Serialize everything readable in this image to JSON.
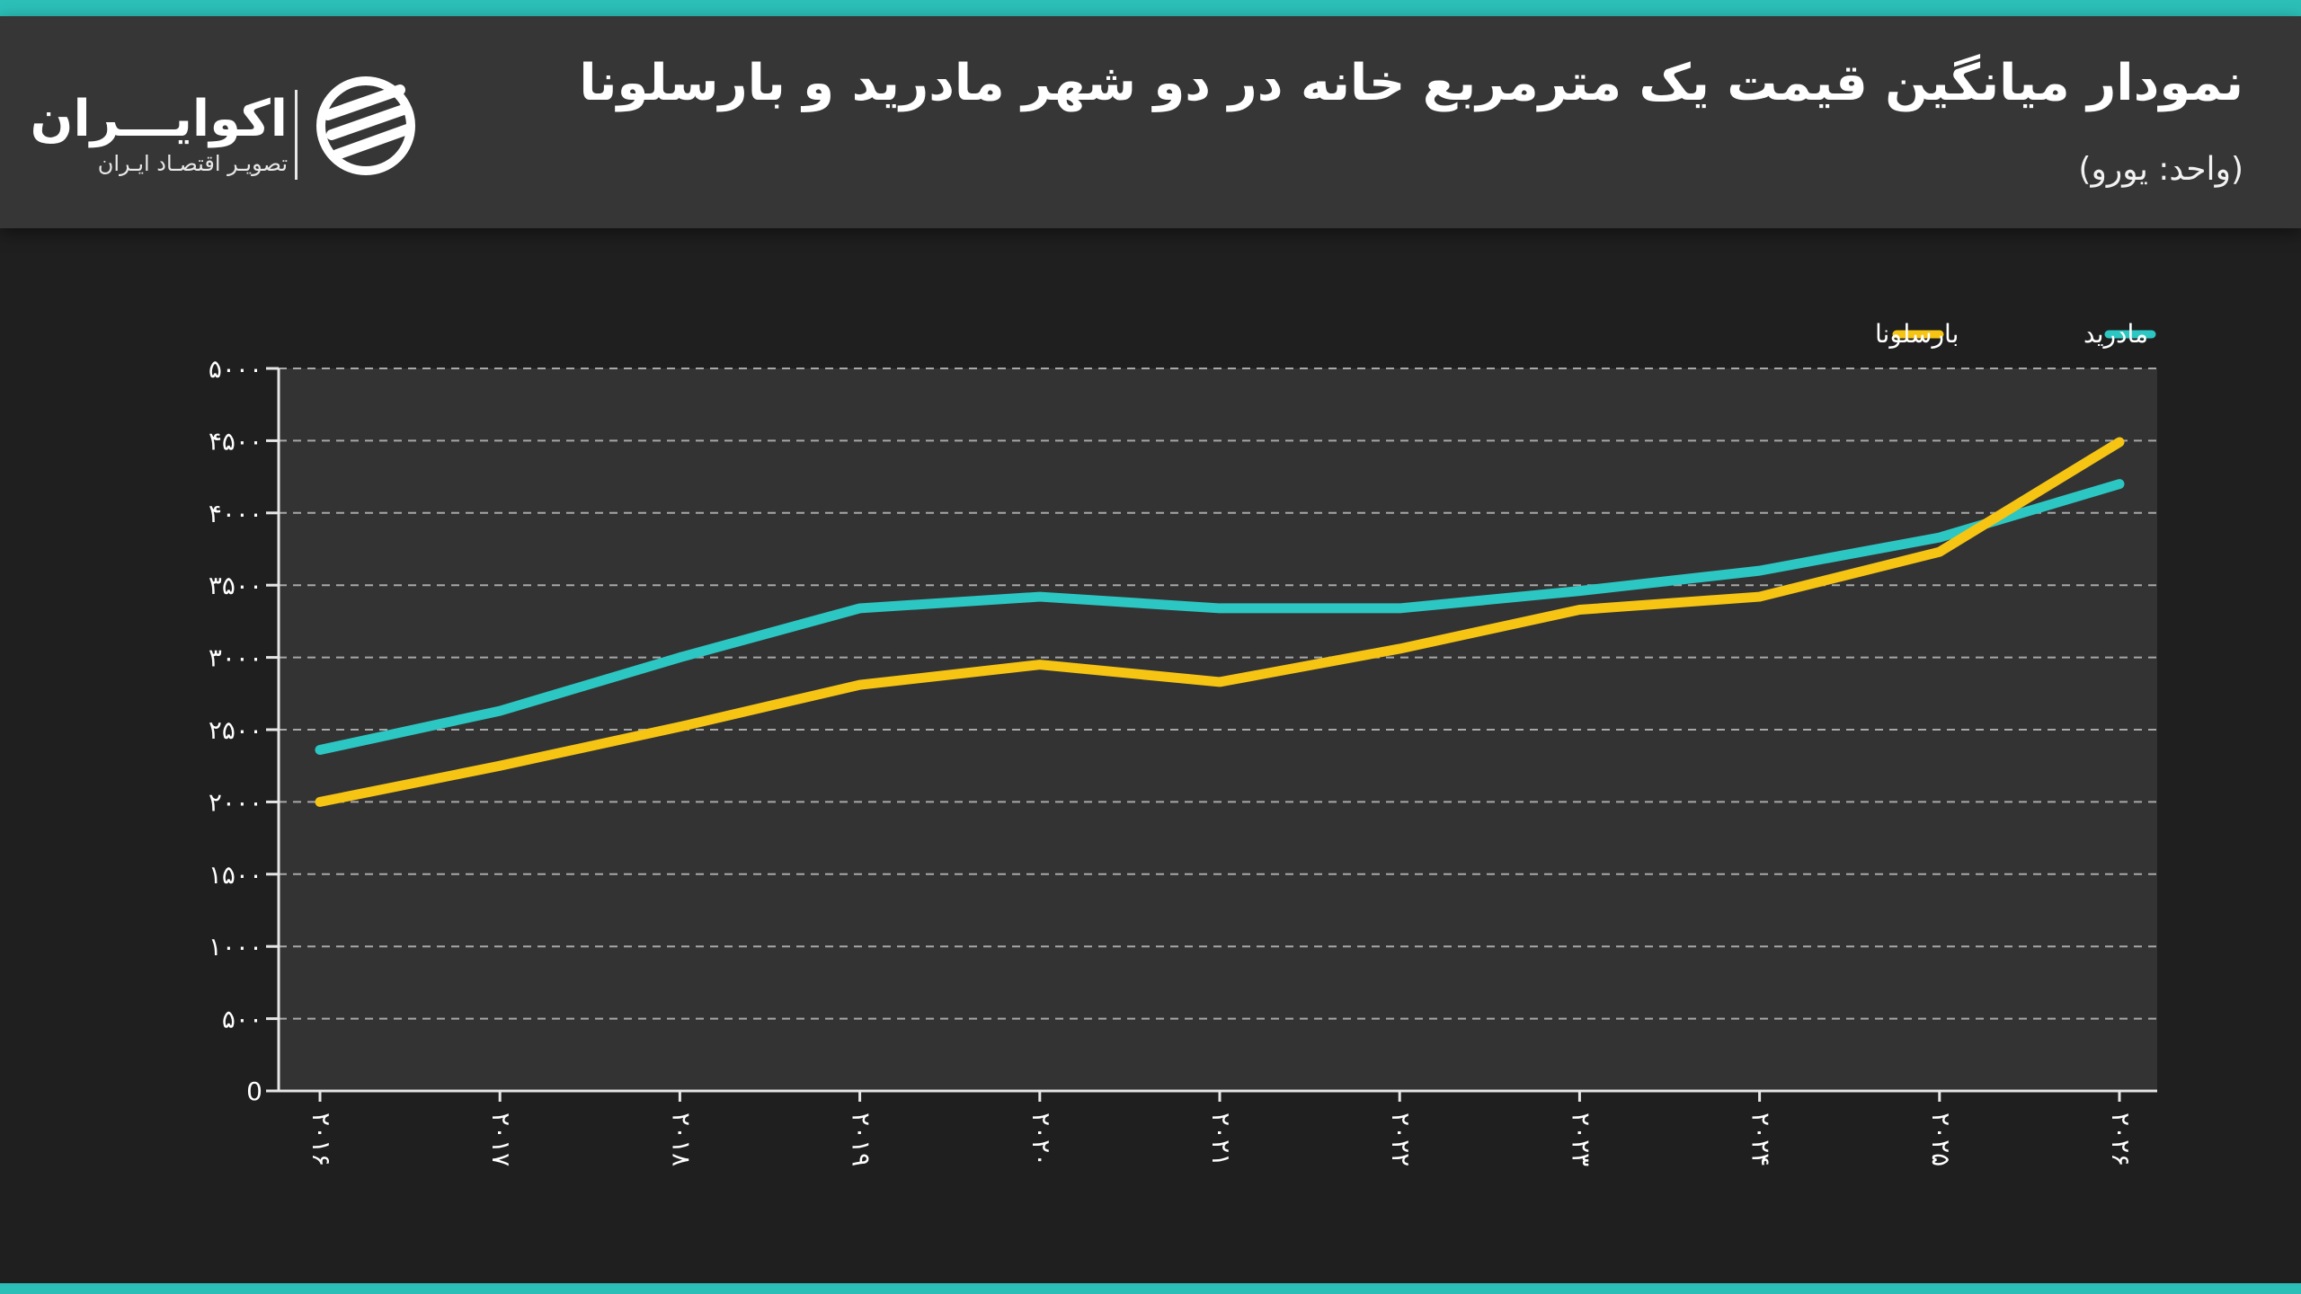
{
  "header": {
    "title": "نمودار میانگین قیمت یک مترمربع خانه در دو شهر مادرید و بارسلونا",
    "subtitle": "(واحد: یورو)"
  },
  "logo": {
    "name": "اکوایـــران",
    "tagline": "تصویـر اقتصـاد ایـران",
    "icon": "ecoiran-logo-icon"
  },
  "colors": {
    "accent": "#2bbfb8",
    "madrid": "#2cc7c2",
    "barcelona": "#f6c413",
    "header_bg": "#363637",
    "plot_bg": "#333334",
    "page_bg": "#1f1f20"
  },
  "chart_data": {
    "type": "line",
    "x": [
      "۲۰۱۶",
      "۲۰۱۷",
      "۲۰۱۸",
      "۲۰۱۹",
      "۲۰۲۰",
      "۲۰۲۱",
      "۲۰۲۲",
      "۲۰۲۳",
      "۲۰۲۴",
      "۲۰۲۵",
      "۲۰۲۶"
    ],
    "series": [
      {
        "name": "مادرید",
        "color": "#2cc7c2",
        "values": [
          2360,
          2630,
          3000,
          3340,
          3420,
          3340,
          3340,
          3460,
          3600,
          3830,
          4200
        ]
      },
      {
        "name": "بارسلونا",
        "color": "#f6c413",
        "values": [
          2000,
          2250,
          2520,
          2810,
          2950,
          2830,
          3060,
          3330,
          3420,
          3730,
          4490
        ]
      }
    ],
    "yticks": [
      "0",
      "۵۰۰",
      "۱۰۰۰",
      "۱۵۰۰",
      "۲۰۰۰",
      "۲۵۰۰",
      "۳۰۰۰",
      "۳۵۰۰",
      "۴۰۰۰",
      "۴۵۰۰",
      "۵۰۰۰"
    ],
    "ylim": [
      0,
      5000
    ],
    "grid": true,
    "legend": "top-right"
  }
}
